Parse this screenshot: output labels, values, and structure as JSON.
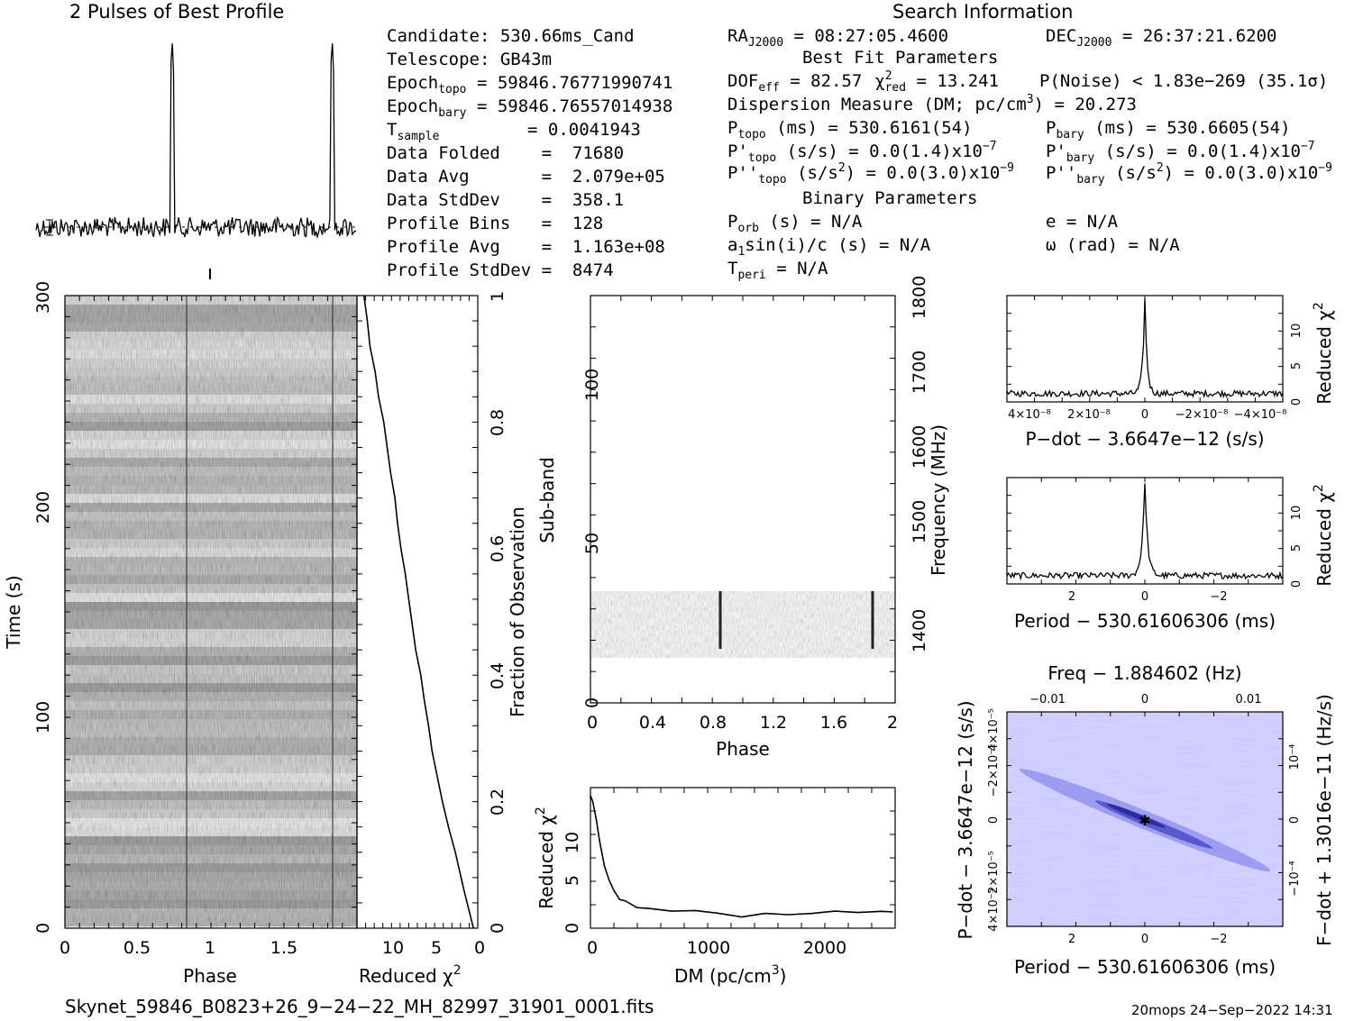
{
  "header": {
    "profile_title": "2 Pulses of Best Profile",
    "search_title": "Search Information",
    "best_fit_title": "Best Fit Parameters",
    "binary_title": "Binary Parameters"
  },
  "candidate_info": [
    {
      "label": "Candidate:  530.66ms_Cand"
    },
    {
      "label": "Telescope:  GB43m"
    },
    {
      "label": "Epoch",
      "sub": "topo",
      "rest": " = 59846.7677199074​1"
    },
    {
      "label": "Epoch",
      "sub": "bary",
      "rest": " = 59846.76557014938"
    },
    {
      "label": "T",
      "sub": "sample",
      "rest": "       =  0.0041943"
    },
    {
      "label": "Data Folded    =  71680"
    },
    {
      "label": "Data Avg       =  2.079e+05"
    },
    {
      "label": "Data StdDev    =  358.1"
    },
    {
      "label": "Profile Bins   =  128"
    },
    {
      "label": "Profile Avg    =  1.163e+08"
    },
    {
      "label": "Profile StdDev =  8474"
    }
  ],
  "search_info": {
    "ra": "RA",
    "ra_sub": "J2000",
    "ra_val": " = 08:27:05.4600",
    "dec": "DEC",
    "dec_sub": "J2000",
    "dec_val": " = 26:37:21.6200",
    "dof": "DOF",
    "dof_sub": "eff",
    "dof_val": " = 82.57",
    "chi": "χ",
    "chi_sup": "2",
    "chi_sub": "red",
    "chi_val": " = 13.241",
    "pnoise": "P(Noise) < 1.83e−269  (35.1σ)",
    "dm_line": "Dispersion Measure (DM; pc/cm",
    "dm_sup": "3",
    "dm_val": ") = 20.273",
    "ptopo": "P",
    "ptopo_sub": "topo",
    "ptopo_val": " (ms) =  530.6161(54)",
    "pbary": "P",
    "pbary_sub": "bary",
    "pbary_val": " (ms) =  530.6605(54)",
    "pdtopo": "P'",
    "pdtopo_sub": "topo",
    "pdtopo_val": " (s/s) = 0.0(1.4)x10",
    "pdtopo_exp": "−7",
    "pdbary": "P'",
    "pdbary_sub": "bary",
    "pdbary_val": " (s/s) = 0.0(1.4)x10",
    "pdbary_exp": "−7",
    "pddtopo": "P''",
    "pddtopo_sub": "topo",
    "pddtopo_val": " (s/s",
    "pddtopo_sup": "2",
    "pddtopo_val2": ") = 0.0(3.0)x10",
    "pddtopo_exp": "−9",
    "pddbary": "P''",
    "pddbary_sub": "bary",
    "pddbary_val": " (s/s",
    "pddbary_sup": "2",
    "pddbary_val2": ") = 0.0(3.0)x10",
    "pddbary_exp": "−9",
    "porb": "P",
    "porb_sub": "orb",
    "porb_val": " (s) = N/A",
    "e_val": "e = N/A",
    "a1": "a",
    "a1_sub": "1",
    "a1_val": "sin(i)/c (s) = N/A",
    "omega_val": "ω (rad) = N/A",
    "tperi": "T",
    "tperi_sub": "peri",
    "tperi_val": " = N/A"
  },
  "footer": {
    "filename": "Skynet_59846_B0823+26_9−24−22_MH_82997_31901_0001.fits",
    "stamp": "20mops 24−Sep−2022 14:31"
  },
  "colors": {
    "map": "#c8c8ff",
    "accent": "#2030d0"
  },
  "chart_data": [
    {
      "type": "line",
      "id": "profile",
      "title": "2 Pulses of Best Profile",
      "x": "phase 0-2",
      "peaks_phase": [
        0.85,
        1.85
      ]
    },
    {
      "type": "heatmap",
      "id": "time-phase",
      "xlabel": "Phase",
      "ylabel": "Time (s)",
      "xlim": [
        0,
        2
      ],
      "ylim": [
        0,
        300
      ],
      "xticks": [
        "0",
        "0.5",
        "1",
        "1.5"
      ],
      "yticks": [
        "0",
        "100",
        "200",
        "300"
      ]
    },
    {
      "type": "line",
      "id": "reduced-chi-time",
      "xlabel": "Reduced χ",
      "xlabel_sup": "2",
      "ylabel": "Fraction of Observation",
      "xticks": [
        "10",
        "5",
        "0"
      ],
      "yticks": [
        "0",
        "0.2",
        "0.4",
        "0.6",
        "0.8",
        "1"
      ],
      "x": [
        13.2,
        12.8,
        12.5,
        11.9,
        11.5,
        10.9,
        10.5,
        10.1,
        9.6,
        9.3,
        8.9,
        8.4,
        8.0,
        7.6,
        7.2,
        6.6,
        6.2,
        5.7,
        5.3,
        4.7,
        4.1,
        3.4,
        2.6,
        1.6,
        0.5
      ],
      "y": [
        1.0,
        0.96,
        0.92,
        0.88,
        0.84,
        0.8,
        0.76,
        0.72,
        0.68,
        0.64,
        0.6,
        0.56,
        0.52,
        0.48,
        0.44,
        0.4,
        0.36,
        0.32,
        0.28,
        0.24,
        0.2,
        0.16,
        0.12,
        0.06,
        0.0
      ]
    },
    {
      "type": "heatmap",
      "id": "subband-phase",
      "xlabel": "Phase",
      "ylabel": "Sub-band",
      "y2label": "Frequency (MHz)",
      "xticks": [
        "0",
        "0.4",
        "0.8",
        "1.2",
        "1.6",
        "2"
      ],
      "yticks": [
        "0",
        "50",
        "100"
      ],
      "y2ticks": [
        "1400",
        "1500",
        "1600",
        "1700",
        "1800"
      ]
    },
    {
      "type": "line",
      "id": "dm-chi",
      "xlabel": "DM (pc/cm",
      "xlabel_sup": "3",
      "xlabel_end": ")",
      "ylabel": "Reduced χ",
      "ylabel_sup": "2",
      "xticks": [
        "0",
        "1000",
        "2000"
      ],
      "yticks": [
        "0",
        "5",
        "10"
      ],
      "x": [
        0,
        20,
        50,
        80,
        120,
        160,
        200,
        250,
        300,
        400,
        500,
        700,
        900,
        1100,
        1300,
        1500,
        1700,
        1900,
        2100,
        2300,
        2500,
        2600
      ],
      "y": [
        13.2,
        12.6,
        10.8,
        8.6,
        6.2,
        4.8,
        3.8,
        3.0,
        2.6,
        2.1,
        1.9,
        1.7,
        1.6,
        1.5,
        1.3,
        1.4,
        1.5,
        1.6,
        1.5,
        1.6,
        1.7,
        1.8
      ]
    },
    {
      "type": "line",
      "id": "pdot-chi",
      "xlabel": "P−dot − 3.6647e−12 (s/s)",
      "ylabel": "Reduced χ",
      "ylabel_sup": "2",
      "xticks": [
        "4×10⁻⁸",
        "2×10⁻⁸",
        "0",
        "−2×10⁻⁸",
        "−4×10⁻⁸"
      ],
      "yticks": [
        "0",
        "5",
        "10"
      ]
    },
    {
      "type": "line",
      "id": "period-chi",
      "xlabel": "Period − 530.61606306 (ms)",
      "ylabel": "Reduced χ",
      "ylabel_sup": "2",
      "xticks": [
        "2",
        "0",
        "−2"
      ],
      "yticks": [
        "0",
        "5",
        "10"
      ]
    },
    {
      "type": "heatmap",
      "id": "p-pdot",
      "title": "Freq − 1.884602 (Hz)",
      "xlabel": "Period − 530.61606306 (ms)",
      "ylabel": "P−dot − 3.6647e−12 (s/s)",
      "y2label": "F−dot + 1.3016e−11 (Hz/s)",
      "xticks": [
        "2",
        "0",
        "−2"
      ],
      "x2ticks": [
        "−0.01",
        "0",
        "0.01"
      ],
      "yticks": [
        "4×10⁻⁵",
        "−2×10⁻⁵",
        "0",
        "2×10⁻⁵",
        "4×10⁻⁵"
      ],
      "y2ticks": [
        "10⁻⁴",
        "0",
        "−10⁻⁴"
      ]
    }
  ]
}
